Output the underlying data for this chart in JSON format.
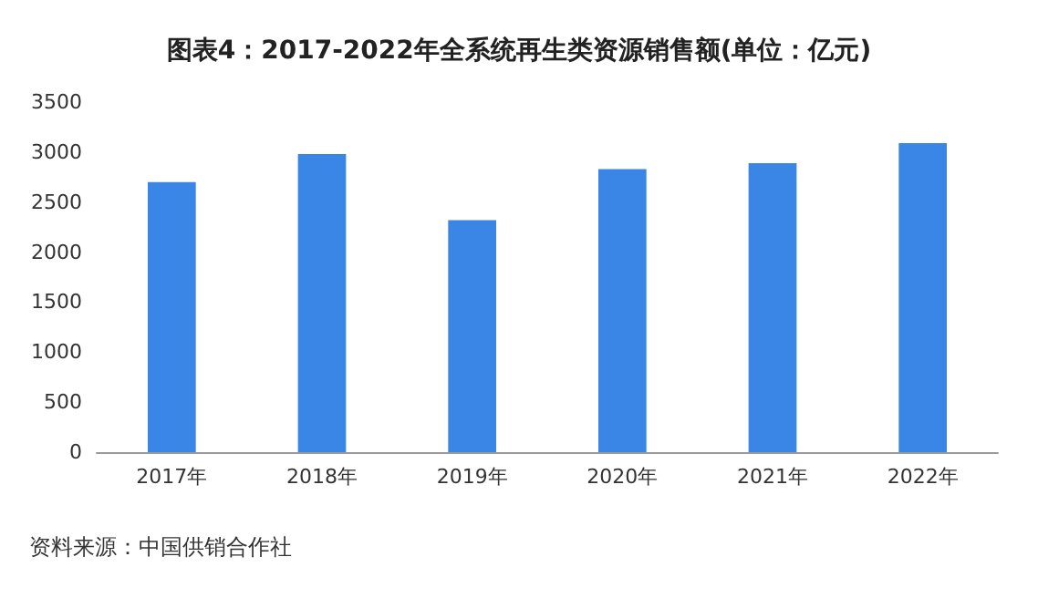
{
  "chart_data": {
    "type": "bar",
    "title": "图表4：2017-2022年全系统再生类资源销售额(单位：亿元)",
    "categories": [
      "2017年",
      "2018年",
      "2019年",
      "2020年",
      "2021年",
      "2022年"
    ],
    "values": [
      2700,
      2980,
      2320,
      2830,
      2890,
      3090
    ],
    "color": "#3a86e6",
    "ylim": [
      0,
      3500
    ],
    "yticks": [
      0,
      500,
      1000,
      1500,
      2000,
      2500,
      3000,
      3500
    ],
    "grid": false,
    "annotations": [
      "资料来源：中国供销合作社"
    ]
  }
}
